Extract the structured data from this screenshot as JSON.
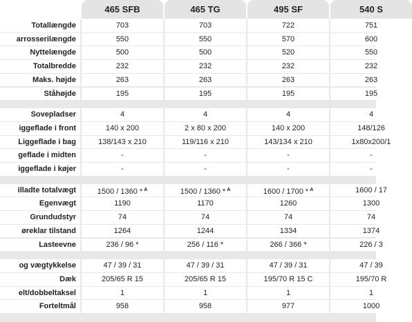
{
  "table": {
    "columns": [
      "465 SFB",
      "465 TG",
      "495 SF",
      "540 S"
    ],
    "sections": [
      {
        "rows": [
          {
            "label": "Totallængde",
            "cells": [
              "703",
              "703",
              "722",
              "751"
            ]
          },
          {
            "label": "arrosserilængde",
            "cells": [
              "550",
              "550",
              "570",
              "600"
            ]
          },
          {
            "label": "Nyttelængde",
            "cells": [
              "500",
              "500",
              "520",
              "550"
            ]
          },
          {
            "label": "Totalbredde",
            "cells": [
              "232",
              "232",
              "232",
              "232"
            ]
          },
          {
            "label": "Maks. højde",
            "cells": [
              "263",
              "263",
              "263",
              "263"
            ]
          },
          {
            "label": "Ståhøjde",
            "cells": [
              "195",
              "195",
              "195",
              "195"
            ]
          }
        ]
      },
      {
        "rows": [
          {
            "label": "Sovepladser",
            "cells": [
              "4",
              "4",
              "4",
              "4"
            ]
          },
          {
            "label": "iggeflade i front",
            "cells": [
              "140 x 200",
              "2 x 80 x 200",
              "140 x 200",
              "148/126"
            ]
          },
          {
            "label": "Liggeflade i bag",
            "cells": [
              "138/143 x 210",
              "119/116 x 210",
              "143/134 x 210",
              "1x80x200/1"
            ]
          },
          {
            "label": "geflade i midten",
            "cells": [
              "-",
              "-",
              "-",
              "-"
            ]
          },
          {
            "label": "iggeflade i køjer",
            "cells": [
              "-",
              "-",
              "-",
              "-"
            ]
          }
        ]
      },
      {
        "rows": [
          {
            "label": "illadte totalvægt",
            "cells": [
              {
                "text": "1500 / 1360 *",
                "sup": "A"
              },
              {
                "text": "1500 / 1360 *",
                "sup": "A"
              },
              {
                "text": "1600 / 1700 *",
                "sup": "A"
              },
              "1600 / 17"
            ]
          },
          {
            "label": "Egenvægt",
            "cells": [
              "1190",
              "1170",
              "1260",
              "1300"
            ]
          },
          {
            "label": "Grundudstyr",
            "cells": [
              "74",
              "74",
              "74",
              "74"
            ]
          },
          {
            "label": "øreklar tilstand",
            "cells": [
              "1264",
              "1244",
              "1334",
              "1374"
            ]
          },
          {
            "label": "Lasteevne",
            "cells": [
              "236 / 96 *",
              "256 / 116 *",
              "266 / 366 *",
              "226 / 3"
            ]
          }
        ]
      },
      {
        "rows": [
          {
            "label": "og vægtykkelse",
            "cells": [
              "47 / 39 / 31",
              "47 / 39 / 31",
              "47 / 39 / 31",
              "47 / 39"
            ]
          },
          {
            "label": "Dæk",
            "cells": [
              "205/65 R 15",
              "205/65 R 15",
              "195/70 R 15 C",
              "195/70 R"
            ]
          },
          {
            "label": "elt/dobbeltaksel",
            "cells": [
              "1",
              "1",
              "1",
              "1"
            ]
          },
          {
            "label": "Forteltmål",
            "cells": [
              "958",
              "958",
              "977",
              "1000"
            ]
          }
        ]
      }
    ]
  }
}
